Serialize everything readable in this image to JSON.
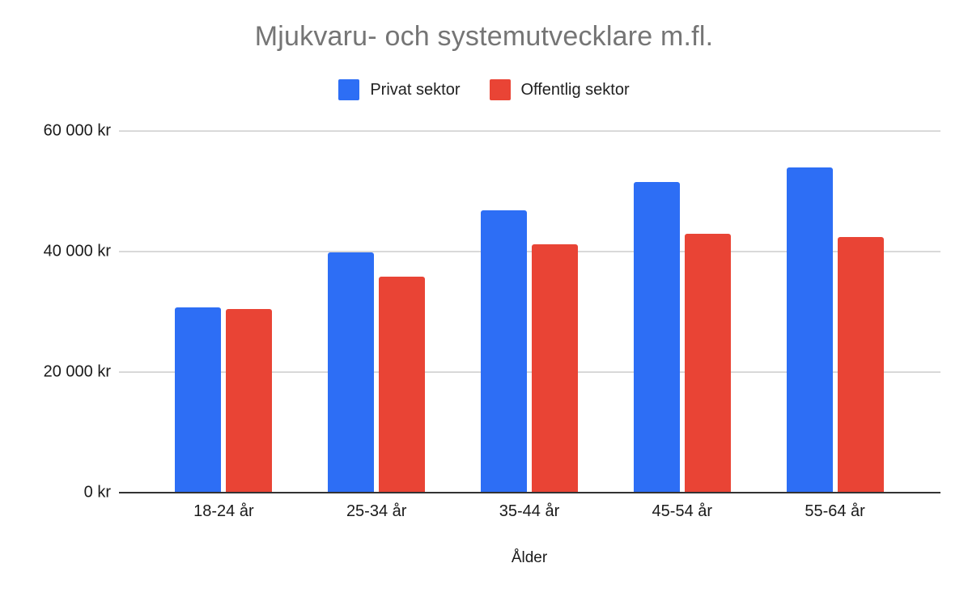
{
  "chart_data": {
    "type": "bar",
    "title": "Mjukvaru- och systemutvecklare m.fl.",
    "xlabel": "Ålder",
    "ylabel": "",
    "categories": [
      "18-24 år",
      "25-34 år",
      "35-44 år",
      "45-54 år",
      "55-64 år"
    ],
    "series": [
      {
        "name": "Privat sektor",
        "color": "#2D6EF5",
        "values": [
          30700,
          39900,
          46900,
          51500,
          53900
        ]
      },
      {
        "name": "Offentlig sektor",
        "color": "#E94435",
        "values": [
          30500,
          35800,
          41200,
          42900,
          42400
        ]
      }
    ],
    "ylim": [
      0,
      60000
    ],
    "yticks": [
      {
        "value": 0,
        "label": "0 kr"
      },
      {
        "value": 20000,
        "label": "20 000 kr"
      },
      {
        "value": 40000,
        "label": "40 000 kr"
      },
      {
        "value": 60000,
        "label": "60 000 kr"
      }
    ],
    "grid": true,
    "legend_position": "top",
    "styles": {
      "title_color": "#757575",
      "axis_label_color": "#1A1A1A",
      "gridline_color": "#D9D9D9",
      "baseline_color": "#333333",
      "background": "#FFFFFF"
    }
  }
}
